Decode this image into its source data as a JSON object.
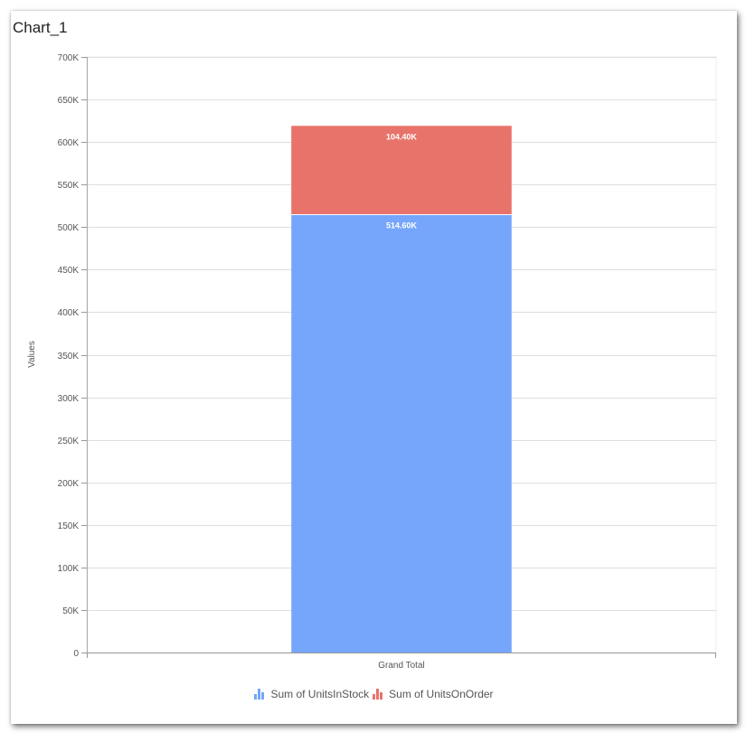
{
  "widget": {
    "title": "Chart_1"
  },
  "chart_data": {
    "type": "bar",
    "stacked": true,
    "categories": [
      "Grand Total"
    ],
    "series": [
      {
        "name": "Sum of UnitsInStock",
        "values": [
          514600
        ],
        "label": "514.60K",
        "color": "#76a6fb"
      },
      {
        "name": "Sum of UnitsOnOrder",
        "values": [
          104400
        ],
        "label": "104.40K",
        "color": "#e8736a"
      }
    ],
    "ylabel": "Values",
    "xlabel": "",
    "ylim": [
      0,
      700000
    ],
    "yticks": [
      "0",
      "50K",
      "100K",
      "150K",
      "200K",
      "250K",
      "300K",
      "350K",
      "400K",
      "450K",
      "500K",
      "550K",
      "600K",
      "650K",
      "700K"
    ],
    "grid": true,
    "legend_position": "bottom"
  }
}
